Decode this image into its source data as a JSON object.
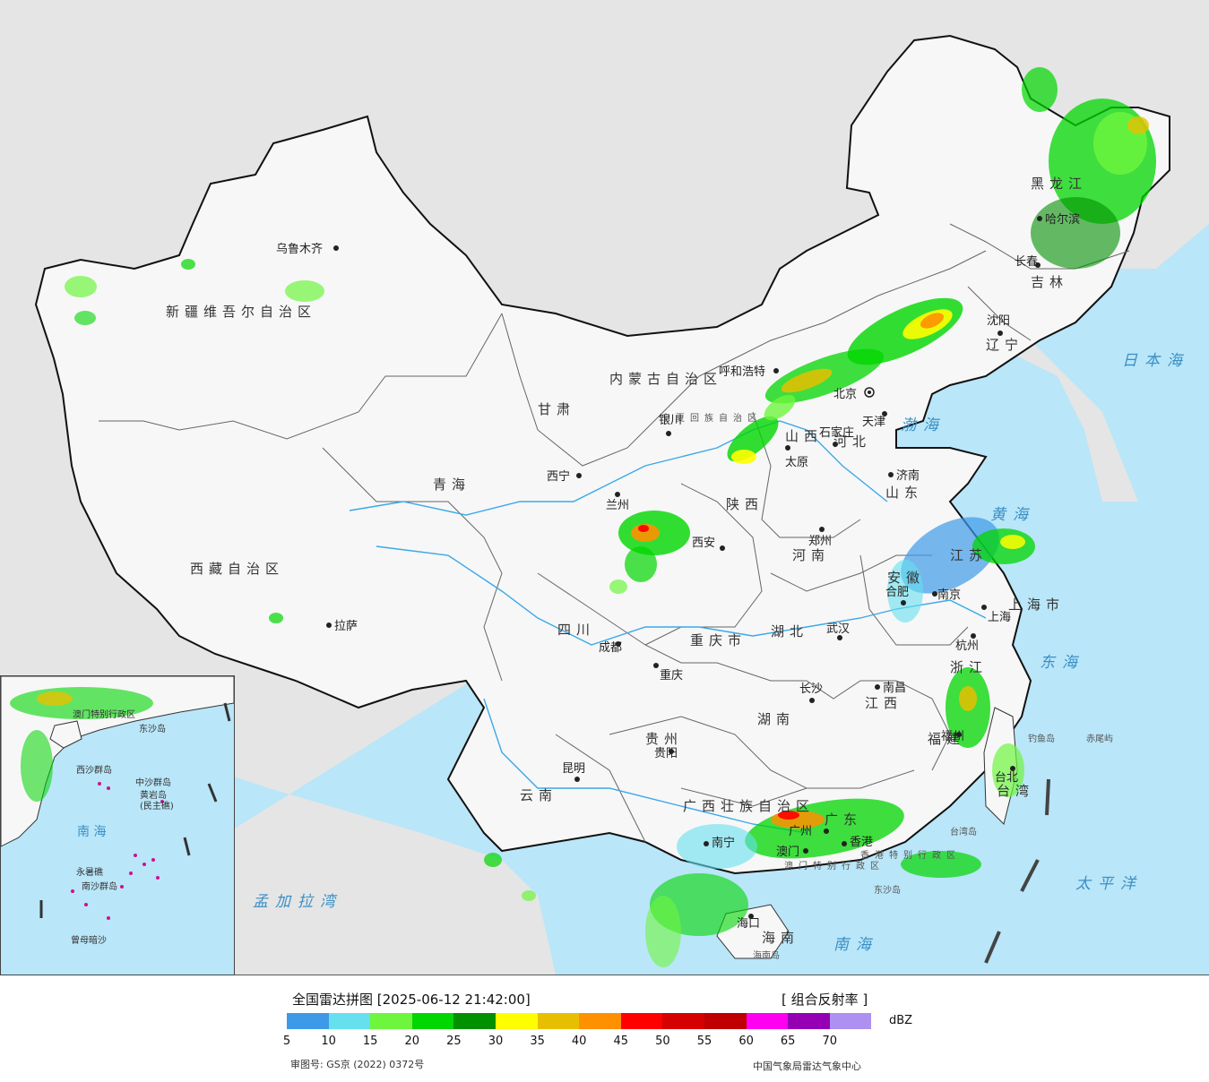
{
  "map": {
    "provinces": [
      {
        "id": "xinjiang",
        "name": "新疆维吾尔自治区"
      },
      {
        "id": "xizang",
        "name": "西藏自治区"
      },
      {
        "id": "qinghai",
        "name": "青海"
      },
      {
        "id": "gansu",
        "name": "甘肃"
      },
      {
        "id": "neimenggu",
        "name": "内蒙古自治区"
      },
      {
        "id": "heilongjiang",
        "name": "黑龙江"
      },
      {
        "id": "jilin",
        "name": "吉林"
      },
      {
        "id": "liaoning",
        "name": "辽宁"
      },
      {
        "id": "hebei",
        "name": "河北"
      },
      {
        "id": "shanxi",
        "name": "山西"
      },
      {
        "id": "shaanxi",
        "name": "陕西"
      },
      {
        "id": "shandong",
        "name": "山东"
      },
      {
        "id": "henan",
        "name": "河南"
      },
      {
        "id": "sichuan",
        "name": "四川"
      },
      {
        "id": "chongqing",
        "name": "重庆市"
      },
      {
        "id": "hubei",
        "name": "湖北"
      },
      {
        "id": "anhui",
        "name": "安徽"
      },
      {
        "id": "jiangsu",
        "name": "江苏"
      },
      {
        "id": "shanghai",
        "name": "上海市"
      },
      {
        "id": "zhejiang",
        "name": "浙江"
      },
      {
        "id": "jiangxi",
        "name": "江西"
      },
      {
        "id": "hunan",
        "name": "湖南"
      },
      {
        "id": "guizhou",
        "name": "贵州"
      },
      {
        "id": "yunnan",
        "name": "云南"
      },
      {
        "id": "guangxi",
        "name": "广西壮族自治区"
      },
      {
        "id": "guangdong",
        "name": "广东"
      },
      {
        "id": "fujian",
        "name": "福建"
      },
      {
        "id": "taiwan",
        "name": "台湾"
      },
      {
        "id": "hainan",
        "name": "海南"
      },
      {
        "id": "ningxia",
        "name": "宁夏回族自治区"
      },
      {
        "id": "hongkong",
        "name": "香港特别行政区"
      },
      {
        "id": "macau",
        "name": "澳门特别行政区"
      }
    ],
    "cities": [
      {
        "id": "urumqi",
        "name": "乌鲁木齐"
      },
      {
        "id": "lhasa",
        "name": "拉萨"
      },
      {
        "id": "xining",
        "name": "西宁"
      },
      {
        "id": "lanzhou",
        "name": "兰州"
      },
      {
        "id": "yinchuan",
        "name": "银川"
      },
      {
        "id": "hohhot",
        "name": "呼和浩特"
      },
      {
        "id": "beijing",
        "name": "北京"
      },
      {
        "id": "tianjin",
        "name": "天津"
      },
      {
        "id": "shijiazhuang",
        "name": "石家庄"
      },
      {
        "id": "taiyuan",
        "name": "太原"
      },
      {
        "id": "jinan",
        "name": "济南"
      },
      {
        "id": "xian",
        "name": "西安"
      },
      {
        "id": "zhengzhou",
        "name": "郑州"
      },
      {
        "id": "chengdu",
        "name": "成都"
      },
      {
        "id": "chongqing",
        "name": "重庆"
      },
      {
        "id": "wuhan",
        "name": "武汉"
      },
      {
        "id": "hefei",
        "name": "合肥"
      },
      {
        "id": "nanjing",
        "name": "南京"
      },
      {
        "id": "shanghai",
        "name": "上海"
      },
      {
        "id": "hangzhou",
        "name": "杭州"
      },
      {
        "id": "nanchang",
        "name": "南昌"
      },
      {
        "id": "changsha",
        "name": "长沙"
      },
      {
        "id": "guiyang",
        "name": "贵阳"
      },
      {
        "id": "kunming",
        "name": "昆明"
      },
      {
        "id": "nanning",
        "name": "南宁"
      },
      {
        "id": "guangzhou",
        "name": "广州"
      },
      {
        "id": "fuzhou",
        "name": "福州"
      },
      {
        "id": "taibei",
        "name": "台北"
      },
      {
        "id": "haikou",
        "name": "海口"
      },
      {
        "id": "shenyang",
        "name": "沈阳"
      },
      {
        "id": "changchun",
        "name": "长春"
      },
      {
        "id": "harbin",
        "name": "哈尔滨"
      },
      {
        "id": "xianggang",
        "name": "香港"
      },
      {
        "id": "aomen",
        "name": "澳门"
      }
    ],
    "seas": [
      {
        "id": "bohai",
        "name": "渤海"
      },
      {
        "id": "huanghai",
        "name": "黄海"
      },
      {
        "id": "donghai",
        "name": "东海"
      },
      {
        "id": "nanhai",
        "name": "南海"
      },
      {
        "id": "taipingyang",
        "name": "太平洋"
      },
      {
        "id": "ribenhai",
        "name": "日本海"
      },
      {
        "id": "mengjialawan",
        "name": "孟加拉湾"
      }
    ],
    "islands": [
      {
        "id": "diaoyudao",
        "name": "钓鱼岛"
      },
      {
        "id": "chiweiyu",
        "name": "赤尾屿"
      },
      {
        "id": "taiwandao",
        "name": "台湾岛"
      },
      {
        "id": "dongshadao",
        "name": "东沙岛"
      },
      {
        "id": "hainandao",
        "name": "海南岛"
      }
    ],
    "inset": {
      "labels": [
        {
          "id": "inset-nanhai",
          "name": "南 海"
        },
        {
          "id": "inset-zhongsha",
          "name": "中沙群岛"
        },
        {
          "id": "inset-nansha",
          "name": "南沙群岛"
        },
        {
          "id": "inset-xisha",
          "name": "西沙群岛"
        },
        {
          "id": "inset-huangyan",
          "name": "黄岩岛"
        },
        {
          "id": "inset-minzhu",
          "name": "(民主礁)"
        },
        {
          "id": "inset-yongshu",
          "name": "永暑礁"
        },
        {
          "id": "inset-zengmu",
          "name": "曾母暗沙"
        },
        {
          "id": "inset-dongsha",
          "name": "东沙岛"
        },
        {
          "id": "inset-aomen",
          "name": "澳门特别行政区"
        }
      ]
    }
  },
  "legend": {
    "title": "全国雷达拼图 [2025-06-12 21:42:00]",
    "product": "[ 组合反射率 ]",
    "unit": "dBZ",
    "colors": [
      "#3d9ae8",
      "#66e0ee",
      "#6ef53e",
      "#00d600",
      "#009000",
      "#fffe00",
      "#e6c000",
      "#ff9000",
      "#ff0000",
      "#d60000",
      "#c00000",
      "#ff00f0",
      "#9600b4",
      "#ad90f0"
    ],
    "ticks": [
      "5",
      "10",
      "15",
      "20",
      "25",
      "30",
      "35",
      "40",
      "45",
      "50",
      "55",
      "60",
      "65",
      "70"
    ],
    "review_number": "审图号: GS京 (2022) 0372号",
    "organization": "中国气象局雷达气象中心"
  }
}
